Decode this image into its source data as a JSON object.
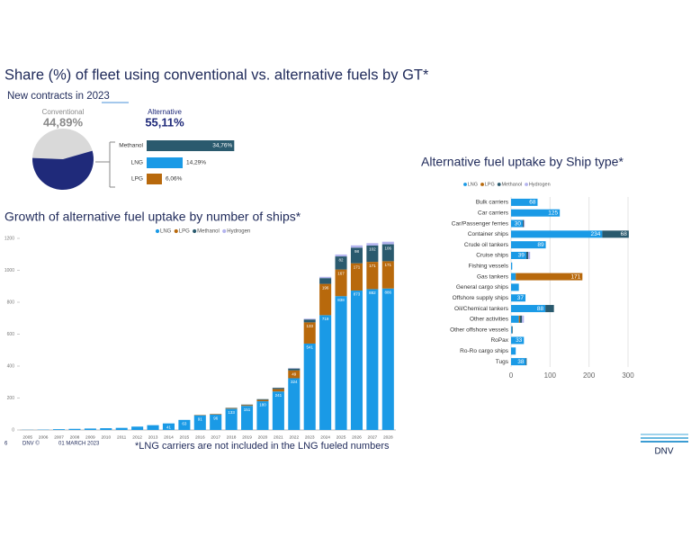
{
  "title": "Share (%) of fleet using conventional vs. alternative fuels by GT*",
  "subtitle": "New contracts in 2023",
  "chart_data": [
    {
      "type": "pie",
      "categories": [
        "Conventional",
        "Alternative"
      ],
      "values": [
        44.89,
        55.11
      ],
      "value_labels": [
        "44,89%",
        "55,11%"
      ],
      "colors": [
        "#d9d9d9",
        "#1f2a7a"
      ]
    },
    {
      "type": "barh",
      "categories": [
        "Methanol",
        "LNG",
        "LPG"
      ],
      "values": [
        34.76,
        14.29,
        6.06
      ],
      "value_labels": [
        "34,76%",
        "14,29%",
        "6,06%"
      ],
      "colors": [
        "#2a5a6e",
        "#1a9ae6",
        "#b8690c"
      ]
    },
    {
      "type": "stacked_bar",
      "title": "Growth of alternative fuel uptake by number of ships*",
      "categories": [
        "2005",
        "2006",
        "2007",
        "2008",
        "2009",
        "2010",
        "2011",
        "2012",
        "2013",
        "2014",
        "2015",
        "2016",
        "2017",
        "2018",
        "2019",
        "2020",
        "2021",
        "2022",
        "2023",
        "2024",
        "2025",
        "2026",
        "2027",
        "2028"
      ],
      "series": [
        {
          "name": "LNG",
          "color": "#1a9ae6",
          "values": [
            1,
            2,
            5,
            7,
            9,
            11,
            13,
            21,
            30,
            41,
            63,
            91,
            96,
            133,
            151,
            180,
            241,
            324,
            541,
            719,
            838,
            873,
            882,
            886
          ]
        },
        {
          "name": "LPG",
          "color": "#b8690c",
          "values": [
            0,
            0,
            0,
            0,
            0,
            0,
            0,
            0,
            0,
            0,
            0,
            2,
            3,
            4,
            5,
            8,
            15,
            49,
            133,
            196,
            167,
            171,
            171,
            171
          ]
        },
        {
          "name": "Methanol",
          "color": "#2a5a6e",
          "values": [
            0,
            0,
            0,
            0,
            0,
            0,
            0,
            0,
            0,
            0,
            0,
            1,
            1,
            2,
            3,
            5,
            8,
            12,
            18,
            36,
            82,
            98,
            102,
            106
          ]
        },
        {
          "name": "Hydrogen",
          "color": "#b4b4ee",
          "values": [
            0,
            0,
            0,
            0,
            0,
            0,
            0,
            0,
            0,
            0,
            0,
            0,
            0,
            0,
            0,
            0,
            1,
            2,
            5,
            8,
            12,
            14,
            15,
            16
          ]
        }
      ],
      "ylim": [
        0,
        1200
      ],
      "yticks": [
        0,
        200,
        400,
        600,
        800,
        1000,
        1200
      ]
    },
    {
      "type": "stacked_barh",
      "title": "Alternative fuel uptake by Ship type*",
      "categories": [
        "Bulk carriers",
        "Car carriers",
        "Car/Passenger ferries",
        "Container ships",
        "Crude oil tankers",
        "Cruise ships",
        "Fishing vessels",
        "Gas tankers",
        "General cargo ships",
        "Offshore supply ships",
        "Oil/Chemical tankers",
        "Other activities",
        "Other offshore vessels",
        "RoPax",
        "Ro-Ro cargo ships",
        "Tugs"
      ],
      "series": [
        {
          "name": "LNG",
          "color": "#1a9ae6",
          "values": [
            68,
            125,
            30,
            234,
            89,
            39,
            3,
            12,
            20,
            37,
            88,
            20,
            2,
            33,
            12,
            38
          ]
        },
        {
          "name": "LPG",
          "color": "#b8690c",
          "values": [
            0,
            0,
            0,
            0,
            0,
            0,
            0,
            171,
            0,
            0,
            0,
            3,
            0,
            0,
            0,
            0
          ]
        },
        {
          "name": "Methanol",
          "color": "#2a5a6e",
          "values": [
            0,
            0,
            3,
            68,
            0,
            5,
            0,
            0,
            0,
            0,
            22,
            5,
            2,
            0,
            0,
            2
          ]
        },
        {
          "name": "Hydrogen",
          "color": "#b4b4ee",
          "values": [
            0,
            0,
            2,
            0,
            0,
            5,
            0,
            0,
            0,
            0,
            0,
            5,
            0,
            0,
            0,
            0
          ]
        }
      ],
      "xlim": [
        0,
        300
      ],
      "xticks": [
        0,
        100,
        200,
        300
      ]
    }
  ],
  "footer": {
    "page": "6",
    "brand": "DNV ©",
    "date": "01 MARCH 2023",
    "note": "*LNG carriers are not included in the LNG fueled numbers",
    "logo": "DNV"
  }
}
